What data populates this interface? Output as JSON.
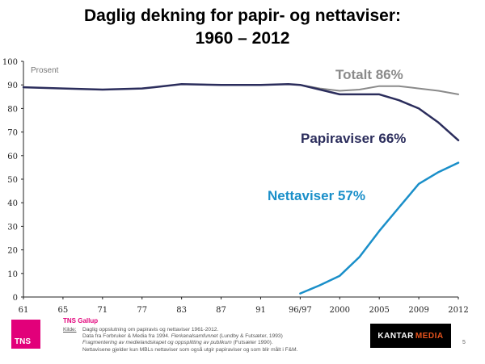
{
  "header": {
    "title_line1": "Daglig dekning for papir- og nettaviser:",
    "title_line2": "1960 – 2012"
  },
  "colors": {
    "totalt": "#8a8a8a",
    "papir": "#2b2d5c",
    "nett": "#1a8fc9",
    "accent": "#e2007a"
  },
  "chart_data": {
    "type": "line",
    "title": "Daglig dekning for papir- og nettaviser: 1960 – 2012",
    "ylabel": "Prosent",
    "xlabel": "",
    "ylim": [
      0,
      100
    ],
    "yticks": [
      0,
      10,
      20,
      30,
      40,
      50,
      60,
      70,
      80,
      90,
      100
    ],
    "xtick_labels": [
      "61",
      "65",
      "71",
      "77",
      "83",
      "87",
      "91",
      "96/97",
      "2000",
      "2005",
      "2009",
      "2012"
    ],
    "x_index_range": [
      0,
      11
    ],
    "series": [
      {
        "name": "Totalt",
        "label": "Totalt 86%",
        "color": "#8a8a8a",
        "x": [
          7,
          7.5,
          8,
          8.5,
          9,
          9.5,
          10,
          10.5,
          11
        ],
        "y": [
          90.0,
          88.5,
          87.5,
          88.0,
          89.5,
          89.5,
          88.5,
          87.5,
          86.0
        ]
      },
      {
        "name": "Papiraviser",
        "label": "Papiraviser 66%",
        "color": "#2b2d5c",
        "x": [
          0,
          1,
          2,
          3,
          3.3,
          4,
          5,
          6,
          6.7,
          7,
          7.5,
          8,
          8.5,
          9,
          9.5,
          10,
          10.5,
          11
        ],
        "y": [
          89.0,
          88.5,
          88.0,
          88.5,
          89.0,
          90.3,
          90.0,
          90.0,
          90.3,
          90.0,
          88.0,
          86.0,
          86.0,
          86.0,
          83.5,
          80.0,
          74.0,
          66.5
        ]
      },
      {
        "name": "Nettaviser",
        "label": "Nettaviser 57%",
        "color": "#1a8fc9",
        "x": [
          7,
          7.5,
          8,
          8.5,
          9,
          9.5,
          10,
          10.5,
          11
        ],
        "y": [
          1.5,
          5.0,
          9.0,
          17.0,
          28.0,
          38.0,
          48.0,
          53.0,
          57.0
        ]
      }
    ]
  },
  "footer": {
    "tns_logo": "TNS",
    "tns_gallup": "TNS Gallup",
    "source_label": "Kilde:",
    "source_line1": "Daglig oppslutning om papiravis og nettaviser 1961-2012.",
    "source_line2a": "Data fra Forbruker & Media fra 1994. ",
    "source_line2b": "Flerkanalsamfunnet",
    "source_line2c": " (Lundby & Futsæter, 1993)",
    "source_line3a": "Fragmentering av medielandskapet og oppsplitting av publikum",
    "source_line3b": " (Futsæter 1990).",
    "source_line4": "Nettavisene gjelder kun MBLs nettaviser som også utgir papiraviser og som blir målt i F&M.",
    "kantar_a": "KANTAR",
    "kantar_b": "MEDIA",
    "page_number": "5"
  }
}
